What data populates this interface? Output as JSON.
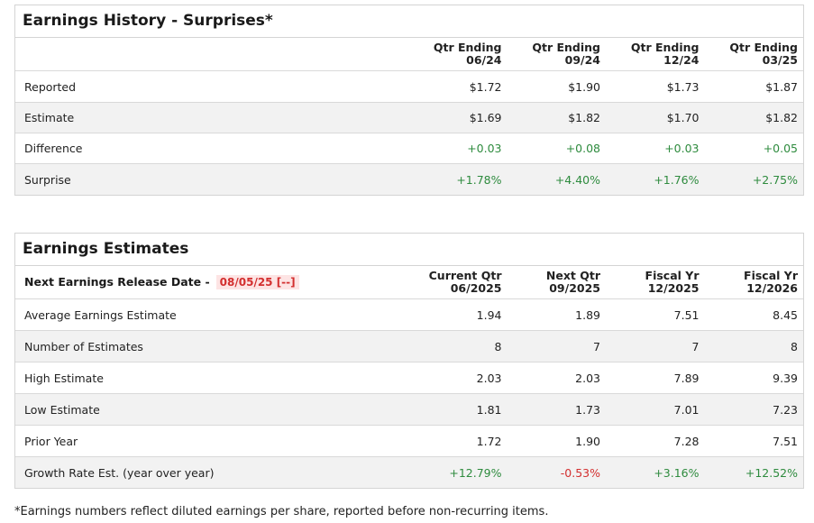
{
  "history": {
    "title": "Earnings History - Surprises*",
    "headers": [
      {
        "l1": "Qtr Ending",
        "l2": "06/24"
      },
      {
        "l1": "Qtr Ending",
        "l2": "09/24"
      },
      {
        "l1": "Qtr Ending",
        "l2": "12/24"
      },
      {
        "l1": "Qtr Ending",
        "l2": "03/25"
      }
    ],
    "rows": [
      {
        "label": "Reported",
        "values": [
          "$1.72",
          "$1.90",
          "$1.73",
          "$1.87"
        ]
      },
      {
        "label": "Estimate",
        "values": [
          "$1.69",
          "$1.82",
          "$1.70",
          "$1.82"
        ]
      },
      {
        "label": "Difference",
        "values": [
          "+0.03",
          "+0.08",
          "+0.03",
          "+0.05"
        ]
      },
      {
        "label": "Surprise",
        "values": [
          "+1.78%",
          "+4.40%",
          "+1.76%",
          "+2.75%"
        ]
      }
    ]
  },
  "estimates": {
    "title": "Earnings Estimates",
    "release_label": "Next Earnings Release Date -",
    "release_date": "08/05/25 [--]",
    "headers": [
      {
        "l1": "Current Qtr",
        "l2": "06/2025"
      },
      {
        "l1": "Next Qtr",
        "l2": "09/2025"
      },
      {
        "l1": "Fiscal Yr",
        "l2": "12/2025"
      },
      {
        "l1": "Fiscal Yr",
        "l2": "12/2026"
      }
    ],
    "rows": [
      {
        "label": "Average Earnings Estimate",
        "values": [
          "1.94",
          "1.89",
          "7.51",
          "8.45"
        ]
      },
      {
        "label": "Number of Estimates",
        "values": [
          "8",
          "7",
          "7",
          "8"
        ]
      },
      {
        "label": "High Estimate",
        "values": [
          "2.03",
          "2.03",
          "7.89",
          "9.39"
        ]
      },
      {
        "label": "Low Estimate",
        "values": [
          "1.81",
          "1.73",
          "7.01",
          "7.23"
        ]
      },
      {
        "label": "Prior Year",
        "values": [
          "1.72",
          "1.90",
          "7.28",
          "7.51"
        ]
      },
      {
        "label": "Growth Rate Est. (year over year)",
        "values": [
          "+12.79%",
          "-0.53%",
          "+3.16%",
          "+12.52%"
        ]
      }
    ]
  },
  "footnote": "*Earnings numbers reflect diluted earnings per share, reported before non-recurring items.",
  "colors": {
    "positive": "#2e8b3e",
    "negative": "#d32f2f",
    "release_date_bg": "#fde4e4"
  }
}
